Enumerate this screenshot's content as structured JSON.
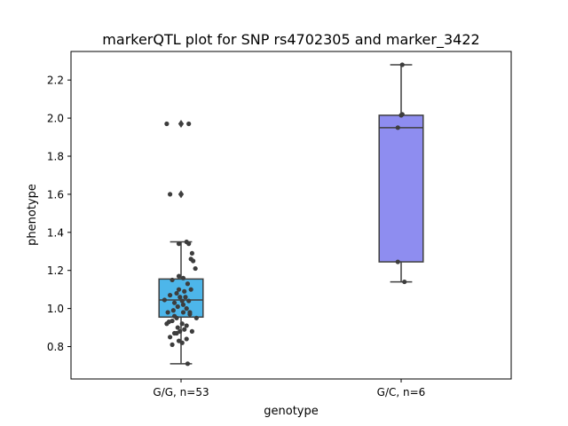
{
  "chart_data": {
    "type": "box",
    "title": "markerQTL plot for SNP rs4702305 and marker_3422",
    "xlabel": "genotype",
    "ylabel": "phenotype",
    "ylim": [
      0.63,
      2.35
    ],
    "yticks": [
      0.8,
      1.0,
      1.2,
      1.4,
      1.6,
      1.8,
      2.0,
      2.2
    ],
    "ytick_labels": [
      "0.8",
      "1.0",
      "1.2",
      "1.4",
      "1.6",
      "1.8",
      "2.0",
      "2.2"
    ],
    "categories": [
      "G/G, n=53",
      "G/C, n=6"
    ],
    "grid": false,
    "boxes": [
      {
        "category": "G/G, n=53",
        "color": "#4DB6EA",
        "q1": 0.955,
        "median": 1.045,
        "q3": 1.155,
        "whisker_low": 0.71,
        "whisker_high": 1.35,
        "outliers": [
          1.97,
          1.6
        ],
        "points": [
          {
            "x": -0.13,
            "y": 1.97
          },
          {
            "x": -0.1,
            "y": 1.6
          },
          {
            "x": 0.07,
            "y": 1.97
          },
          {
            "x": -0.02,
            "y": 1.34
          },
          {
            "x": 0.05,
            "y": 1.35
          },
          {
            "x": 0.07,
            "y": 1.34
          },
          {
            "x": 0.1,
            "y": 1.29
          },
          {
            "x": 0.09,
            "y": 1.26
          },
          {
            "x": 0.11,
            "y": 1.25
          },
          {
            "x": 0.13,
            "y": 1.21
          },
          {
            "x": -0.02,
            "y": 1.17
          },
          {
            "x": 0.02,
            "y": 1.16
          },
          {
            "x": -0.08,
            "y": 1.15
          },
          {
            "x": 0.06,
            "y": 1.13
          },
          {
            "x": -0.02,
            "y": 1.1
          },
          {
            "x": -0.04,
            "y": 1.08
          },
          {
            "x": 0.03,
            "y": 1.09
          },
          {
            "x": 0.09,
            "y": 1.1
          },
          {
            "x": -0.1,
            "y": 1.07
          },
          {
            "x": -0.01,
            "y": 1.06
          },
          {
            "x": 0.04,
            "y": 1.06
          },
          {
            "x": -0.15,
            "y": 1.045
          },
          {
            "x": 0.01,
            "y": 1.04
          },
          {
            "x": 0.07,
            "y": 1.04
          },
          {
            "x": -0.06,
            "y": 1.03
          },
          {
            "x": 0.02,
            "y": 1.02
          },
          {
            "x": -0.03,
            "y": 1.01
          },
          {
            "x": 0.05,
            "y": 1.0
          },
          {
            "x": -0.07,
            "y": 0.99
          },
          {
            "x": -0.12,
            "y": 0.98
          },
          {
            "x": 0.02,
            "y": 0.98
          },
          {
            "x": 0.08,
            "y": 0.97
          },
          {
            "x": -0.06,
            "y": 0.96
          },
          {
            "x": -0.04,
            "y": 0.95
          },
          {
            "x": 0.14,
            "y": 0.95
          },
          {
            "x": -0.11,
            "y": 0.93
          },
          {
            "x": -0.13,
            "y": 0.92
          },
          {
            "x": -0.08,
            "y": 0.935
          },
          {
            "x": 0.01,
            "y": 0.92
          },
          {
            "x": 0.05,
            "y": 0.91
          },
          {
            "x": -0.03,
            "y": 0.9
          },
          {
            "x": 0.03,
            "y": 0.89
          },
          {
            "x": -0.01,
            "y": 0.88
          },
          {
            "x": 0.1,
            "y": 0.88
          },
          {
            "x": -0.06,
            "y": 0.87
          },
          {
            "x": -0.04,
            "y": 0.87
          },
          {
            "x": -0.1,
            "y": 0.85
          },
          {
            "x": 0.05,
            "y": 0.84
          },
          {
            "x": -0.02,
            "y": 0.83
          },
          {
            "x": -0.08,
            "y": 0.81
          },
          {
            "x": 0.01,
            "y": 0.82
          },
          {
            "x": 0.06,
            "y": 0.71
          },
          {
            "x": 0.08,
            "y": 0.98
          }
        ]
      },
      {
        "category": "G/C, n=6",
        "color": "#8E8DF0",
        "q1": 1.245,
        "median": 1.95,
        "q3": 2.015,
        "whisker_low": 1.14,
        "whisker_high": 2.28,
        "outliers": [],
        "points": [
          {
            "x": 0.01,
            "y": 2.28
          },
          {
            "x": 0.01,
            "y": 2.02
          },
          {
            "x": -0.03,
            "y": 1.95
          },
          {
            "x": -0.03,
            "y": 1.245
          },
          {
            "x": 0.03,
            "y": 1.14
          },
          {
            "x": 0.0,
            "y": 2.015
          }
        ]
      }
    ],
    "colors": {
      "axis": "#000000",
      "box_edge": "#3f3f3f",
      "point": "#3d3d3d"
    }
  }
}
